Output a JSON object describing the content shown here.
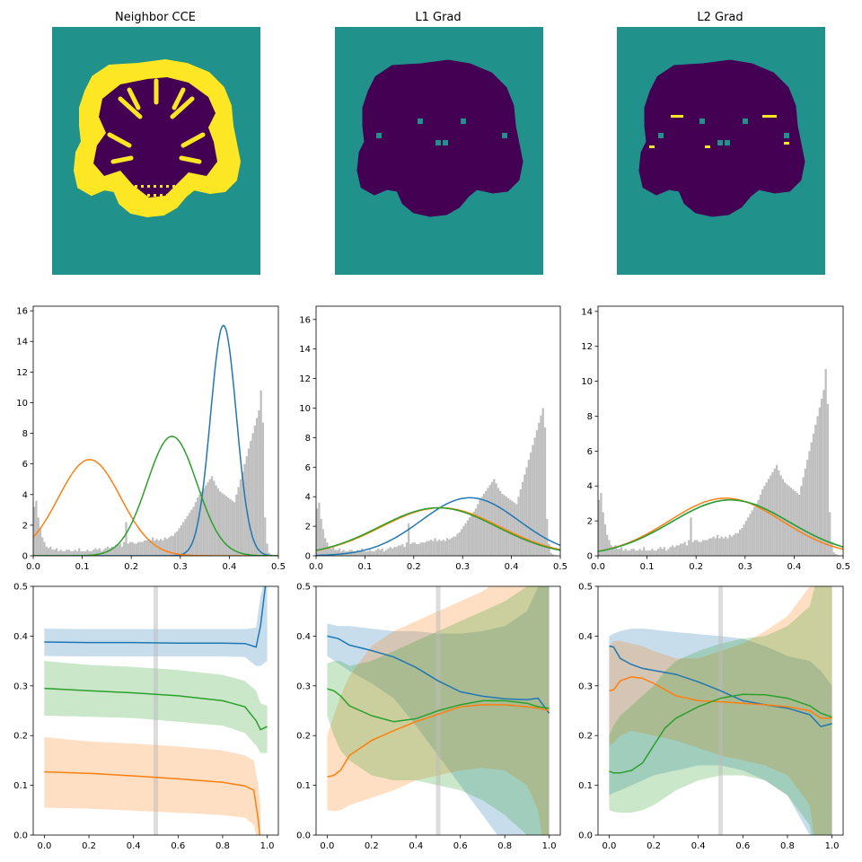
{
  "colors": {
    "background_teal": "#21918c",
    "brain_purple": "#440154",
    "highlight_yellow": "#fde725",
    "blue": "#1f77b4",
    "orange": "#ff7f0e",
    "green": "#2ca02c",
    "hist_gray": "#bfbfbf",
    "vline_gray": "#d9d9d9"
  },
  "panels": [
    {
      "id": "cce",
      "title": "Neighbor CCE"
    },
    {
      "id": "l1",
      "title": "L1 Grad"
    },
    {
      "id": "l2",
      "title": "L2 Grad"
    }
  ],
  "chart_data": [
    {
      "type": "line",
      "panel": "Neighbor CCE",
      "row": "density",
      "xlim": [
        0,
        0.5
      ],
      "ylim": [
        0,
        16.3
      ],
      "xticks": [
        0.0,
        0.1,
        0.2,
        0.3,
        0.4,
        0.5
      ],
      "yticks": [
        0,
        2,
        4,
        6,
        8,
        10,
        12,
        14,
        16
      ],
      "histogram_bins": [
        0.0,
        0.5
      ],
      "histogram_heights": [
        3.2,
        3.6,
        2.5,
        1.8,
        1.2,
        0.9,
        0.6,
        0.5,
        0.6,
        0.4,
        0.4,
        0.5,
        0.3,
        0.4,
        0.3,
        0.3,
        0.4,
        0.4,
        0.3,
        0.3,
        0.4,
        0.3,
        0.5,
        0.3,
        0.3,
        0.3,
        0.4,
        0.3,
        0.3,
        0.4,
        0.5,
        0.4,
        0.5,
        0.3,
        0.4,
        0.5,
        0.6,
        0.5,
        0.6,
        0.6,
        0.7,
        0.7,
        0.8,
        0.6,
        0.9,
        2.2,
        0.8,
        0.9,
        0.9,
        0.8,
        0.8,
        0.9,
        0.9,
        0.9,
        1.0,
        1.0,
        1.1,
        1.0,
        1.2,
        1.0,
        1.1,
        1.0,
        1.1,
        1.0,
        1.2,
        1.1,
        1.2,
        1.3,
        1.3,
        1.5,
        1.6,
        1.8,
        2.0,
        2.2,
        2.4,
        2.6,
        2.8,
        3.0,
        3.2,
        3.5,
        3.8,
        4.0,
        4.2,
        4.4,
        4.6,
        4.8,
        5.0,
        5.2,
        4.9,
        4.6,
        4.4,
        4.2,
        4.1,
        4.0,
        3.9,
        3.8,
        3.7,
        3.6,
        3.5,
        4.0,
        4.5,
        5.0,
        5.5,
        6.0,
        6.5,
        7.0,
        7.5,
        8.0,
        8.5,
        9.0,
        9.5,
        10.8,
        8.7,
        2.5,
        0.8,
        0.2,
        0.1,
        0.05,
        0.0,
        0.0
      ],
      "series": [
        {
          "color": "blue",
          "kind": "gaussian",
          "mean": 0.388,
          "sd": 0.0265,
          "peak": 15.05
        },
        {
          "color": "orange",
          "kind": "gaussian",
          "mean": 0.115,
          "sd": 0.0635,
          "peak": 6.28
        },
        {
          "color": "green",
          "kind": "gaussian",
          "mean": 0.283,
          "sd": 0.051,
          "peak": 7.8
        }
      ]
    },
    {
      "type": "line",
      "panel": "L1 Grad",
      "row": "density",
      "xlim": [
        0,
        0.5
      ],
      "ylim": [
        0,
        16.9
      ],
      "xticks": [
        0.0,
        0.1,
        0.2,
        0.3,
        0.4,
        0.5
      ],
      "yticks": [
        0,
        2,
        4,
        6,
        8,
        10,
        12,
        14,
        16
      ],
      "histogram_bins": [
        0.0,
        0.5
      ],
      "histogram_heights": [
        3.2,
        3.6,
        2.5,
        1.8,
        1.2,
        0.9,
        0.6,
        0.5,
        0.6,
        0.4,
        0.4,
        0.5,
        0.3,
        0.4,
        0.3,
        0.3,
        0.4,
        0.4,
        0.3,
        0.3,
        0.4,
        0.3,
        0.5,
        0.3,
        0.3,
        0.3,
        0.4,
        0.3,
        0.3,
        0.4,
        0.5,
        0.4,
        0.5,
        0.3,
        0.4,
        0.5,
        0.6,
        0.5,
        0.6,
        0.6,
        0.7,
        0.7,
        0.8,
        0.6,
        0.9,
        2.2,
        0.8,
        0.9,
        0.9,
        0.8,
        0.8,
        0.9,
        0.9,
        0.9,
        1.0,
        1.0,
        1.1,
        1.0,
        1.2,
        1.0,
        1.1,
        1.0,
        1.1,
        1.0,
        1.2,
        1.1,
        1.2,
        1.3,
        1.3,
        1.5,
        1.6,
        1.8,
        2.0,
        2.2,
        2.4,
        2.6,
        2.8,
        3.0,
        3.2,
        3.5,
        3.8,
        4.0,
        4.2,
        4.4,
        4.6,
        4.8,
        5.0,
        5.2,
        4.9,
        4.6,
        4.4,
        4.2,
        4.1,
        4.0,
        3.9,
        3.8,
        3.7,
        3.6,
        3.5,
        4.0,
        4.5,
        5.0,
        5.5,
        6.0,
        6.5,
        7.0,
        7.5,
        8.0,
        8.5,
        9.0,
        9.5,
        10.0,
        8.7,
        2.5,
        0.8,
        0.2,
        0.1,
        0.05,
        0.0,
        0.0
      ],
      "series": [
        {
          "color": "blue",
          "kind": "gaussian",
          "mean": 0.315,
          "sd": 0.1,
          "peak": 3.93
        },
        {
          "color": "orange",
          "kind": "gaussian",
          "mean": 0.255,
          "sd": 0.121,
          "peak": 3.25
        },
        {
          "color": "green",
          "kind": "gaussian",
          "mean": 0.25,
          "sd": 0.12,
          "peak": 3.25
        }
      ]
    },
    {
      "type": "line",
      "panel": "L2 Grad",
      "row": "density",
      "xlim": [
        0,
        0.5
      ],
      "ylim": [
        0,
        14.3
      ],
      "xticks": [
        0.0,
        0.1,
        0.2,
        0.3,
        0.4,
        0.5
      ],
      "yticks": [
        0,
        2,
        4,
        6,
        8,
        10,
        12,
        14
      ],
      "histogram_bins": [
        0.0,
        0.5
      ],
      "histogram_heights": [
        3.2,
        3.6,
        2.5,
        1.8,
        1.2,
        0.9,
        0.6,
        0.5,
        0.6,
        0.4,
        0.4,
        0.5,
        0.3,
        0.4,
        0.3,
        0.3,
        0.4,
        0.4,
        0.3,
        0.3,
        0.4,
        0.3,
        0.5,
        0.3,
        0.3,
        0.3,
        0.4,
        0.3,
        0.3,
        0.4,
        0.5,
        0.4,
        0.5,
        0.3,
        0.4,
        0.5,
        0.6,
        0.5,
        0.6,
        0.6,
        0.7,
        0.7,
        0.8,
        0.6,
        0.9,
        2.2,
        0.8,
        0.9,
        0.9,
        0.8,
        0.8,
        0.9,
        0.9,
        0.9,
        1.0,
        1.0,
        1.1,
        1.0,
        1.2,
        1.0,
        1.1,
        1.0,
        1.1,
        1.0,
        1.2,
        1.1,
        1.2,
        1.3,
        1.3,
        1.5,
        1.6,
        1.8,
        2.0,
        2.2,
        2.4,
        2.6,
        2.8,
        3.0,
        3.2,
        3.5,
        3.8,
        4.0,
        4.2,
        4.4,
        4.6,
        4.8,
        5.0,
        5.2,
        4.9,
        4.6,
        4.4,
        4.2,
        4.1,
        4.0,
        3.9,
        3.8,
        3.7,
        3.6,
        3.5,
        4.0,
        4.5,
        5.0,
        5.5,
        6.0,
        6.5,
        7.0,
        7.5,
        8.0,
        8.5,
        9.0,
        9.5,
        10.7,
        8.7,
        2.5,
        0.8,
        0.2,
        0.1,
        0.05,
        0.0,
        0.0
      ],
      "series": [
        {
          "color": "blue",
          "kind": "gaussian",
          "mean": 0.27,
          "sd": 0.12,
          "peak": 3.2
        },
        {
          "color": "orange",
          "kind": "gaussian",
          "mean": 0.26,
          "sd": 0.115,
          "peak": 3.3
        },
        {
          "color": "green",
          "kind": "gaussian",
          "mean": 0.27,
          "sd": 0.12,
          "peak": 3.2
        }
      ]
    },
    {
      "type": "line",
      "panel": "Neighbor CCE",
      "row": "trajectory",
      "xlim": [
        -0.05,
        1.05
      ],
      "ylim": [
        0,
        0.5
      ],
      "xticks": [
        0.0,
        0.2,
        0.4,
        0.6,
        0.8,
        1.0
      ],
      "yticks": [
        0.0,
        0.1,
        0.2,
        0.3,
        0.4,
        0.5
      ],
      "vline_x": 0.5,
      "series": [
        {
          "color": "blue",
          "x": [
            0,
            0.2,
            0.4,
            0.6,
            0.8,
            0.9,
            0.95,
            0.97,
            1.0
          ],
          "y": [
            0.388,
            0.387,
            0.387,
            0.386,
            0.386,
            0.385,
            0.378,
            0.42,
            0.53
          ],
          "band_upper": [
            0.415,
            0.414,
            0.414,
            0.414,
            0.414,
            0.414,
            0.417,
            0.48,
            0.53
          ],
          "band_lower": [
            0.36,
            0.359,
            0.359,
            0.359,
            0.359,
            0.358,
            0.34,
            0.34,
            0.35
          ]
        },
        {
          "color": "orange",
          "x": [
            0,
            0.2,
            0.4,
            0.6,
            0.8,
            0.9,
            0.94,
            0.96,
            0.97
          ],
          "y": [
            0.127,
            0.124,
            0.119,
            0.113,
            0.106,
            0.099,
            0.09,
            0.03,
            -0.02
          ],
          "band_upper": [
            0.197,
            0.188,
            0.184,
            0.178,
            0.17,
            0.16,
            0.15,
            0.1,
            0.06
          ],
          "band_lower": [
            0.055,
            0.053,
            0.049,
            0.045,
            0.04,
            0.035,
            0.02,
            -0.02,
            -0.05
          ]
        },
        {
          "color": "green",
          "x": [
            0,
            0.2,
            0.4,
            0.6,
            0.8,
            0.9,
            0.95,
            0.97,
            1.0
          ],
          "y": [
            0.295,
            0.29,
            0.286,
            0.28,
            0.27,
            0.258,
            0.23,
            0.212,
            0.218
          ],
          "band_upper": [
            0.35,
            0.342,
            0.338,
            0.332,
            0.322,
            0.31,
            0.29,
            0.265,
            0.26
          ],
          "band_lower": [
            0.24,
            0.238,
            0.235,
            0.228,
            0.22,
            0.205,
            0.18,
            0.165,
            0.165
          ]
        }
      ]
    },
    {
      "type": "line",
      "panel": "L1 Grad",
      "row": "trajectory",
      "xlim": [
        -0.05,
        1.05
      ],
      "ylim": [
        0,
        0.5
      ],
      "xticks": [
        0.0,
        0.2,
        0.4,
        0.6,
        0.8,
        1.0
      ],
      "yticks": [
        0.0,
        0.1,
        0.2,
        0.3,
        0.4,
        0.5
      ],
      "vline_x": 0.5,
      "series": [
        {
          "color": "blue",
          "x": [
            0,
            0.05,
            0.1,
            0.2,
            0.3,
            0.4,
            0.5,
            0.6,
            0.7,
            0.8,
            0.9,
            0.95,
            1.0
          ],
          "y": [
            0.4,
            0.395,
            0.382,
            0.371,
            0.358,
            0.337,
            0.31,
            0.288,
            0.279,
            0.274,
            0.272,
            0.275,
            0.245
          ],
          "band_upper": [
            0.425,
            0.42,
            0.42,
            0.415,
            0.41,
            0.41,
            0.405,
            0.405,
            0.41,
            0.42,
            0.45,
            0.5,
            0.5
          ],
          "band_lower": [
            0.36,
            0.345,
            0.33,
            0.305,
            0.275,
            0.22,
            0.16,
            0.1,
            0.04,
            -0.02,
            -0.1,
            -0.1,
            -0.1
          ]
        },
        {
          "color": "orange",
          "x": [
            0,
            0.03,
            0.06,
            0.1,
            0.2,
            0.3,
            0.4,
            0.5,
            0.6,
            0.7,
            0.8,
            0.9,
            0.95,
            1.0
          ],
          "y": [
            0.117,
            0.12,
            0.13,
            0.16,
            0.19,
            0.21,
            0.228,
            0.243,
            0.258,
            0.262,
            0.262,
            0.258,
            0.255,
            0.25
          ],
          "band_upper": [
            0.2,
            0.24,
            0.28,
            0.32,
            0.38,
            0.41,
            0.43,
            0.45,
            0.47,
            0.49,
            0.52,
            0.58,
            0.6,
            0.6
          ],
          "band_lower": [
            0.05,
            0.048,
            0.05,
            0.06,
            0.075,
            0.09,
            0.11,
            0.12,
            0.13,
            0.135,
            0.13,
            0.1,
            0.05,
            -0.1
          ]
        },
        {
          "color": "green",
          "x": [
            0,
            0.03,
            0.06,
            0.1,
            0.2,
            0.3,
            0.4,
            0.5,
            0.6,
            0.7,
            0.8,
            0.9,
            0.95,
            1.0
          ],
          "y": [
            0.294,
            0.29,
            0.28,
            0.26,
            0.24,
            0.228,
            0.234,
            0.25,
            0.262,
            0.27,
            0.27,
            0.265,
            0.258,
            0.255
          ],
          "band_upper": [
            0.345,
            0.35,
            0.35,
            0.34,
            0.35,
            0.37,
            0.39,
            0.41,
            0.43,
            0.45,
            0.47,
            0.5,
            0.6,
            0.6
          ],
          "band_lower": [
            0.24,
            0.2,
            0.17,
            0.15,
            0.12,
            0.11,
            0.11,
            0.1,
            0.09,
            0.07,
            0.04,
            0.0,
            -0.1,
            -0.1
          ]
        }
      ]
    },
    {
      "type": "line",
      "panel": "L2 Grad",
      "row": "trajectory",
      "xlim": [
        -0.05,
        1.05
      ],
      "ylim": [
        0,
        0.5
      ],
      "xticks": [
        0.0,
        0.2,
        0.4,
        0.6,
        0.8,
        1.0
      ],
      "yticks": [
        0.0,
        0.1,
        0.2,
        0.3,
        0.4,
        0.5
      ],
      "vline_x": 0.5,
      "series": [
        {
          "color": "blue",
          "x": [
            0,
            0.02,
            0.05,
            0.1,
            0.15,
            0.2,
            0.3,
            0.4,
            0.5,
            0.6,
            0.7,
            0.8,
            0.9,
            0.95,
            1.0
          ],
          "y": [
            0.38,
            0.378,
            0.355,
            0.343,
            0.335,
            0.331,
            0.323,
            0.308,
            0.29,
            0.27,
            0.262,
            0.255,
            0.242,
            0.218,
            0.224
          ],
          "band_upper": [
            0.4,
            0.405,
            0.41,
            0.415,
            0.415,
            0.413,
            0.408,
            0.404,
            0.4,
            0.395,
            0.38,
            0.36,
            0.35,
            0.33,
            0.3
          ],
          "band_lower": [
            0.08,
            0.085,
            0.09,
            0.1,
            0.11,
            0.12,
            0.13,
            0.14,
            0.14,
            0.13,
            0.11,
            0.08,
            0.0,
            -0.1,
            -0.1
          ]
        },
        {
          "color": "orange",
          "x": [
            0,
            0.02,
            0.05,
            0.1,
            0.15,
            0.2,
            0.3,
            0.4,
            0.5,
            0.6,
            0.7,
            0.8,
            0.9,
            0.95,
            1.0
          ],
          "y": [
            0.29,
            0.292,
            0.31,
            0.318,
            0.315,
            0.305,
            0.28,
            0.27,
            0.268,
            0.265,
            0.262,
            0.258,
            0.25,
            0.235,
            0.235
          ],
          "band_upper": [
            0.38,
            0.39,
            0.39,
            0.385,
            0.38,
            0.37,
            0.355,
            0.355,
            0.37,
            0.385,
            0.41,
            0.44,
            0.5,
            0.6,
            0.6
          ],
          "band_lower": [
            0.18,
            0.185,
            0.2,
            0.21,
            0.205,
            0.2,
            0.19,
            0.175,
            0.16,
            0.15,
            0.14,
            0.12,
            0.06,
            -0.1,
            -0.1
          ]
        },
        {
          "color": "green",
          "x": [
            0,
            0.02,
            0.05,
            0.1,
            0.15,
            0.2,
            0.25,
            0.3,
            0.4,
            0.5,
            0.6,
            0.7,
            0.8,
            0.9,
            0.95,
            1.0
          ],
          "y": [
            0.128,
            0.125,
            0.125,
            0.13,
            0.145,
            0.18,
            0.215,
            0.235,
            0.258,
            0.275,
            0.283,
            0.282,
            0.275,
            0.26,
            0.245,
            0.237
          ],
          "band_upper": [
            0.2,
            0.22,
            0.24,
            0.26,
            0.28,
            0.3,
            0.33,
            0.35,
            0.37,
            0.385,
            0.395,
            0.4,
            0.42,
            0.46,
            0.55,
            0.6
          ],
          "band_lower": [
            0.05,
            0.047,
            0.045,
            0.045,
            0.05,
            0.06,
            0.075,
            0.09,
            0.11,
            0.12,
            0.12,
            0.11,
            0.08,
            0.02,
            -0.1,
            -0.1
          ]
        }
      ]
    }
  ]
}
